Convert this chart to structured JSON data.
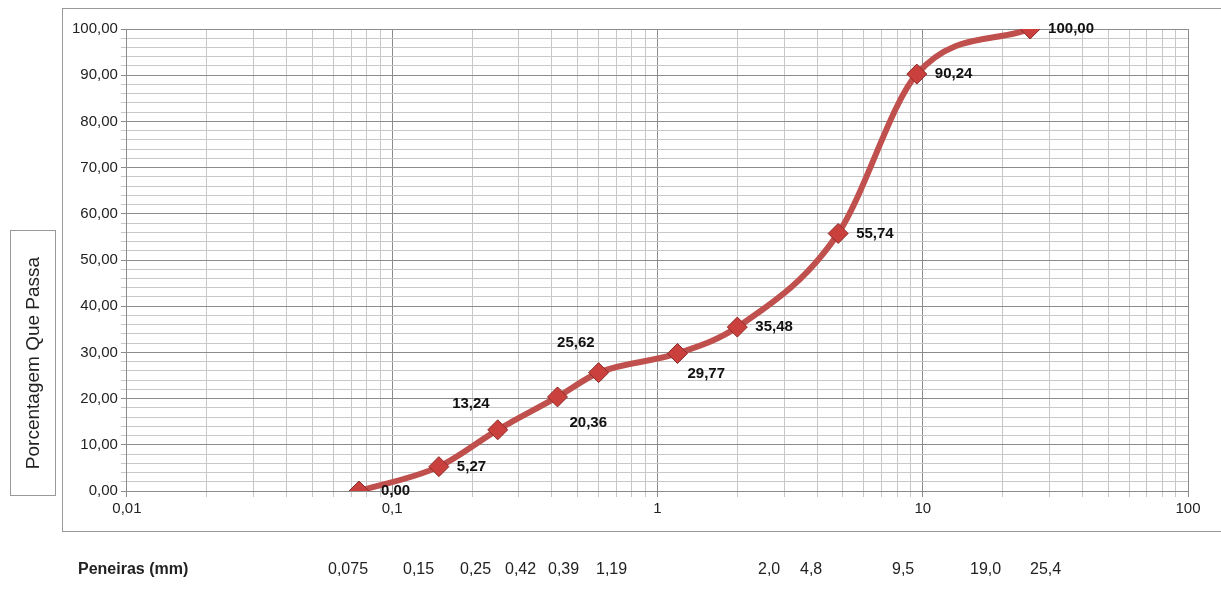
{
  "chart_data": {
    "type": "line",
    "ylabel": "Porcentagem Que Passa",
    "x": [
      0.075,
      0.15,
      0.25,
      0.42,
      0.6,
      1.19,
      2.0,
      4.8,
      9.5,
      25.4
    ],
    "series": [
      {
        "color": "#c0504d",
        "values": [
          0,
          5.27,
          13.24,
          20.36,
          25.62,
          29.77,
          35.48,
          55.74,
          90.24,
          100
        ]
      }
    ],
    "value_labels": [
      "0,00",
      "5,27",
      "13,24",
      "20,36",
      "25,62",
      "29,77",
      "35,48",
      "55,74",
      "90,24",
      "100,00"
    ],
    "log": "x",
    "xlim": [
      0.01,
      100
    ],
    "xticks": [
      {
        "value": 0.01,
        "label": "0,01"
      },
      {
        "value": 0.02,
        "label": null
      },
      {
        "value": 0.03,
        "label": null
      },
      {
        "value": 0.04,
        "label": null
      },
      {
        "value": 0.05,
        "label": null
      },
      {
        "value": 0.06,
        "label": null
      },
      {
        "value": 0.07,
        "label": null
      },
      {
        "value": 0.08,
        "label": null
      },
      {
        "value": 0.09,
        "label": null
      },
      {
        "value": 0.1,
        "label": "0,1"
      },
      {
        "value": 0.2,
        "label": null
      },
      {
        "value": 0.3,
        "label": null
      },
      {
        "value": 0.4,
        "label": null
      },
      {
        "value": 0.5,
        "label": null
      },
      {
        "value": 0.6,
        "label": null
      },
      {
        "value": 0.7,
        "label": null
      },
      {
        "value": 0.8,
        "label": null
      },
      {
        "value": 0.9,
        "label": null
      },
      1,
      {
        "value": 2,
        "label": null
      },
      {
        "value": 3,
        "label": null
      },
      {
        "value": 4,
        "label": null
      },
      {
        "value": 5,
        "label": null
      },
      {
        "value": 6,
        "label": null
      },
      {
        "value": 7,
        "label": null
      },
      {
        "value": 8,
        "label": null
      },
      {
        "value": 9,
        "label": null
      },
      10,
      {
        "value": 20,
        "label": null
      },
      {
        "value": 30,
        "label": null
      },
      {
        "value": 40,
        "label": null
      },
      {
        "value": 50,
        "label": null
      },
      {
        "value": 60,
        "label": null
      },
      {
        "value": 70,
        "label": null
      },
      {
        "value": 80,
        "label": null
      },
      {
        "value": 90,
        "label": null
      },
      100
    ],
    "ylim": [
      0,
      100
    ],
    "yticks": [
      {
        "value": 0,
        "label": "0,00"
      },
      {
        "value": 2,
        "label": null
      },
      {
        "value": 4,
        "label": null
      },
      {
        "value": 6,
        "label": null
      },
      {
        "value": 8,
        "label": null
      },
      {
        "value": 10,
        "label": "10,00"
      },
      {
        "value": 12,
        "label": null
      },
      {
        "value": 14,
        "label": null
      },
      {
        "value": 16,
        "label": null
      },
      {
        "value": 18,
        "label": null
      },
      {
        "value": 20,
        "label": "20,00"
      },
      {
        "value": 22,
        "label": null
      },
      {
        "value": 24,
        "label": null
      },
      {
        "value": 26,
        "label": null
      },
      {
        "value": 28,
        "label": null
      },
      {
        "value": 30,
        "label": "30,00"
      },
      {
        "value": 32,
        "label": null
      },
      {
        "value": 34,
        "label": null
      },
      {
        "value": 36,
        "label": null
      },
      {
        "value": 38,
        "label": null
      },
      {
        "value": 40,
        "label": "40,00"
      },
      {
        "value": 42,
        "label": null
      },
      {
        "value": 44,
        "label": null
      },
      {
        "value": 46,
        "label": null
      },
      {
        "value": 48,
        "label": null
      },
      {
        "value": 50,
        "label": "50,00"
      },
      {
        "value": 52,
        "label": null
      },
      {
        "value": 54,
        "label": null
      },
      {
        "value": 56,
        "label": null
      },
      {
        "value": 58,
        "label": null
      },
      {
        "value": 60,
        "label": "60,00"
      },
      {
        "value": 62,
        "label": null
      },
      {
        "value": 64,
        "label": null
      },
      {
        "value": 66,
        "label": null
      },
      {
        "value": 68,
        "label": null
      },
      {
        "value": 70,
        "label": "70,00"
      },
      {
        "value": 72,
        "label": null
      },
      {
        "value": 74,
        "label": null
      },
      {
        "value": 76,
        "label": null
      },
      {
        "value": 78,
        "label": null
      },
      {
        "value": 80,
        "label": "80,00"
      },
      {
        "value": 82,
        "label": null
      },
      {
        "value": 84,
        "label": null
      },
      {
        "value": 86,
        "label": null
      },
      {
        "value": 88,
        "label": null
      },
      {
        "value": 90,
        "label": "90,00"
      },
      {
        "value": 92,
        "label": null
      },
      {
        "value": 94,
        "label": null
      },
      {
        "value": 96,
        "label": null
      },
      {
        "value": 98,
        "label": null
      },
      {
        "value": 100,
        "label": "100,00"
      }
    ],
    "grid": true,
    "legend": false,
    "marker": "diamond",
    "line_style": "solid",
    "annotations": [
      "Peneiras (mm)",
      "0,075",
      "0,15",
      "0,25",
      "0,42",
      "0,39",
      "1,19",
      "2,0",
      "4,8",
      "9,5",
      "19,0",
      "25,4"
    ]
  }
}
